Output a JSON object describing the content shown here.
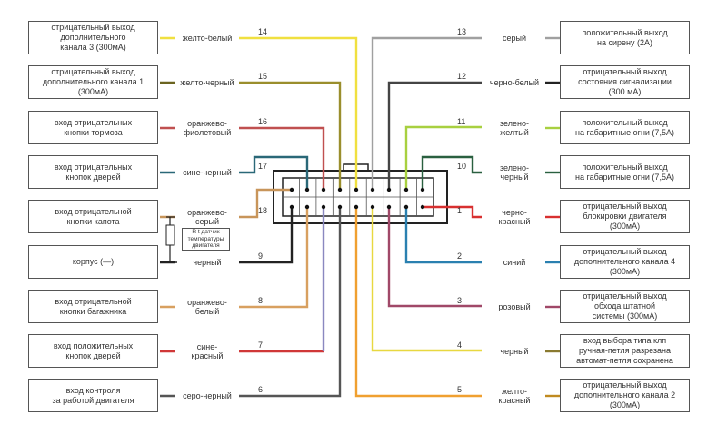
{
  "left": [
    {
      "pin": "14",
      "color_name": [
        "желто-белый"
      ],
      "wire": "#f0e040",
      "stub": "#f0e040",
      "label": [
        "отрицательный выход",
        "дополнительного",
        "канала 3 (300мА)"
      ]
    },
    {
      "pin": "15",
      "color_name": [
        "желто-черный"
      ],
      "wire": "#9a8e2c",
      "stub": "#6b6420",
      "label": [
        "отрицательный выход",
        "дополнительного канала 1",
        "(300мА)"
      ]
    },
    {
      "pin": "16",
      "color_name": [
        "оранжево-",
        "фиолетовый"
      ],
      "wire": "#c05050",
      "stub": "#c05050",
      "label": [
        "вход отрицательных",
        "кнопки тормоза"
      ]
    },
    {
      "pin": "17",
      "color_name": [
        "сине-черный"
      ],
      "wire": "#2a6878",
      "stub": "#2a6878",
      "label": [
        "вход отрицательных",
        "кнопок дверей"
      ]
    },
    {
      "pin": "18",
      "color_name": [
        "оранжево-",
        "серый"
      ],
      "wire": "#c8955a",
      "stub": "#c8955a",
      "label": [
        "вход отрицательной",
        "кнопки капота"
      ]
    },
    {
      "pin": "9",
      "color_name": [
        "черный"
      ],
      "wire": "#222222",
      "stub": "#222222",
      "label": [
        "корпус (—)"
      ]
    },
    {
      "pin": "8",
      "color_name": [
        "оранжево-",
        "белый"
      ],
      "wire": "#d8a060",
      "stub": "#d8a060",
      "label": [
        "вход отрицательной",
        "кнопки багажника"
      ]
    },
    {
      "pin": "7",
      "color_name": [
        "сине-",
        "красный"
      ],
      "wire": "#d03838",
      "stub": "#d03838",
      "vwire": "#8a88c0",
      "label": [
        "вход положительных",
        "кнопок дверей"
      ]
    },
    {
      "pin": "6",
      "color_name": [
        "серо-черный"
      ],
      "wire": "#555555",
      "stub": "#555555",
      "label": [
        "вход контроля",
        "за работой двигателя"
      ]
    }
  ],
  "right": [
    {
      "pin": "13",
      "color_name": [
        "серый"
      ],
      "wire": "#a0a0a0",
      "stub": "#a0a0a0",
      "label": [
        "положительный выход",
        "на сирену (2А)"
      ]
    },
    {
      "pin": "12",
      "color_name": [
        "черно-белый"
      ],
      "wire": "#444444",
      "stub": "#222222",
      "label": [
        "отрицательный  выход",
        "состояния сигнализации",
        "(300 мА)"
      ]
    },
    {
      "pin": "11",
      "color_name": [
        "зелено-",
        "желтый"
      ],
      "wire": "#a8d040",
      "stub": "#a8d040",
      "label": [
        "положительный выход",
        "на габаритные огни (7,5А)"
      ]
    },
    {
      "pin": "10",
      "color_name": [
        "зелено-",
        "черный"
      ],
      "wire": "#2a6040",
      "stub": "#2a6040",
      "label": [
        "положительный выход",
        "на габаритные огни (7,5А)"
      ]
    },
    {
      "pin": "1",
      "color_name": [
        "черно-",
        "красный"
      ],
      "wire": "#d83030",
      "stub": "#d83030",
      "label": [
        "отрицательный выход",
        "блокировки двигателя",
        "(300мА)"
      ]
    },
    {
      "pin": "2",
      "color_name": [
        "синий"
      ],
      "wire": "#2a80b0",
      "stub": "#2a80b0",
      "label": [
        "отрицательный выход",
        "дополнительного канала 4",
        "(300мА)"
      ]
    },
    {
      "pin": "3",
      "color_name": [
        "розовый"
      ],
      "wire": "#a04868",
      "stub": "#a04868",
      "label": [
        "отрицательный выход",
        "обхода штатной",
        "системы (300мА)"
      ]
    },
    {
      "pin": "4",
      "color_name": [
        "черный"
      ],
      "wire": "#e8d840",
      "stub": "#8a7a30",
      "label": [
        "вход выбора типа клп",
        "ручная-петля разрезана",
        "автомат-петля сохранена"
      ]
    },
    {
      "pin": "5",
      "color_name": [
        "желто-",
        "красный"
      ],
      "wire": "#f0a030",
      "stub": "#c08a20",
      "label": [
        "отрицательный выход",
        "дополнительного канала 2",
        "(300мА)"
      ]
    }
  ],
  "sensor": {
    "label": [
      "R t датчик",
      "температуры",
      "двигателя"
    ]
  }
}
